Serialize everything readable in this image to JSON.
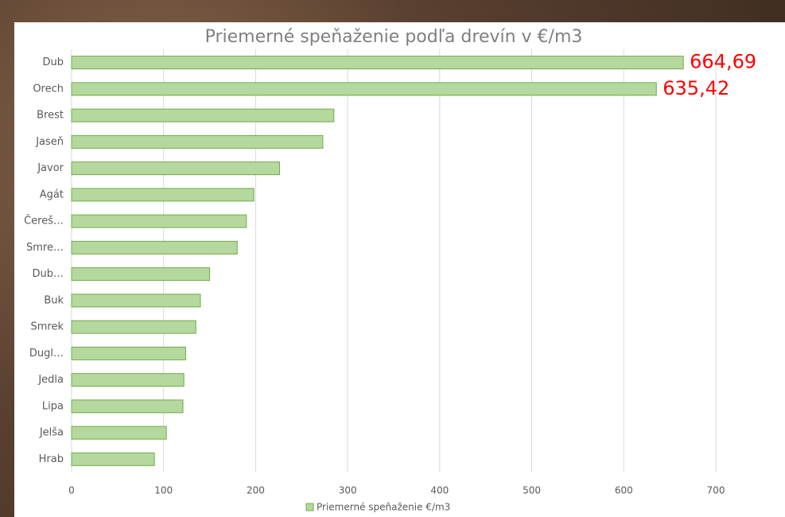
{
  "chart_data": {
    "type": "bar",
    "title": "Priemerné speňaženie podľa drevín v €/m3",
    "categories": [
      "Dub",
      "Orech",
      "Brest",
      "Jaseň",
      "Javor",
      "Agát",
      "Čereš…",
      "Smre…",
      "Dub…",
      "Buk",
      "Smrek",
      "Dugl…",
      "Jedla",
      "Lipa",
      "Jelša",
      "Hrab"
    ],
    "series": [
      {
        "name": "Priemerné speňaženie €/m3",
        "color": "#b4d89d",
        "values": [
          664.69,
          635.42,
          285,
          273,
          226,
          198,
          190,
          180,
          150,
          140,
          135,
          124,
          122,
          121,
          103,
          90
        ],
        "value_labels": [
          "664,69",
          "635,42",
          null,
          null,
          null,
          null,
          null,
          null,
          null,
          null,
          null,
          null,
          null,
          null,
          null,
          null
        ]
      }
    ],
    "xlim": [
      0,
      700
    ],
    "xticks": [
      0,
      100,
      200,
      300,
      400,
      500,
      600,
      700
    ],
    "grid": true
  }
}
